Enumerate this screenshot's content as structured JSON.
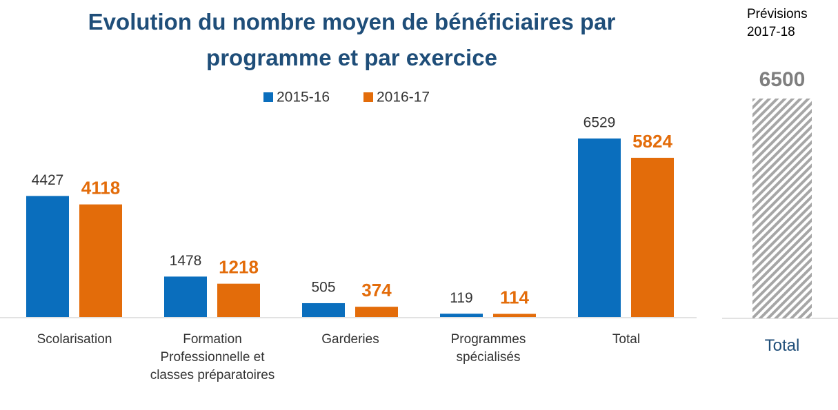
{
  "chart_data": [
    {
      "type": "bar",
      "title": "Evolution du nombre moyen de bénéficiaires par programme et par exercice",
      "categories": [
        "Scolarisation",
        "Formation Professionnelle et classes préparatoires",
        "Garderies",
        "Programmes spécialisés",
        "Total"
      ],
      "series": [
        {
          "name": "2015-16",
          "color": "#0a6ebd",
          "values": [
            4427,
            1478,
            505,
            119,
            6529
          ]
        },
        {
          "name": "2016-17",
          "color": "#e36c0a",
          "values": [
            4118,
            1218,
            374,
            114,
            5824
          ]
        }
      ],
      "legend": "top"
    },
    {
      "type": "bar",
      "title": "Prévisions 2017-18",
      "categories": [
        "Total"
      ],
      "values": [
        6500
      ],
      "color": "#a6a6a6",
      "pattern": "hatch"
    }
  ]
}
